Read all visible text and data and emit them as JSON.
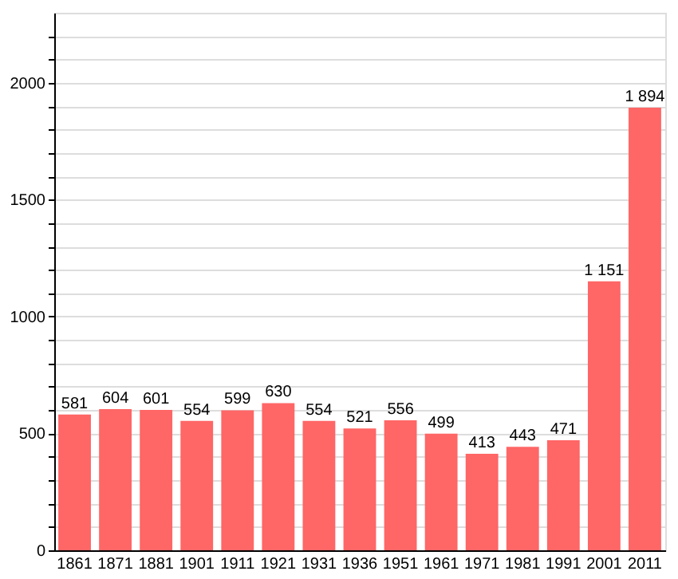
{
  "chart_data": {
    "type": "bar",
    "categories": [
      "1861",
      "1871",
      "1881",
      "1901",
      "1911",
      "1921",
      "1931",
      "1936",
      "1951",
      "1961",
      "1971",
      "1981",
      "1991",
      "2001",
      "2011"
    ],
    "values": [
      581,
      604,
      601,
      554,
      599,
      630,
      554,
      521,
      556,
      499,
      413,
      443,
      471,
      1151,
      1894
    ],
    "value_labels": [
      "581",
      "604",
      "601",
      "554",
      "599",
      "630",
      "554",
      "521",
      "556",
      "499",
      "413",
      "443",
      "471",
      "1 151",
      "1 894"
    ],
    "color": "#ff6666",
    "ylim": [
      0,
      2300
    ],
    "yticks": [
      0,
      {
        "value": 100,
        "label": null
      },
      {
        "value": 200,
        "label": null
      },
      {
        "value": 300,
        "label": null
      },
      {
        "value": 400,
        "label": null
      },
      500,
      {
        "value": 600,
        "label": null
      },
      {
        "value": 700,
        "label": null
      },
      {
        "value": 800,
        "label": null
      },
      {
        "value": 900,
        "label": null
      },
      1000,
      {
        "value": 1100,
        "label": null
      },
      {
        "value": 1200,
        "label": null
      },
      {
        "value": 1300,
        "label": null
      },
      {
        "value": 1400,
        "label": null
      },
      1500,
      {
        "value": 1600,
        "label": null
      },
      {
        "value": 1700,
        "label": null
      },
      {
        "value": 1800,
        "label": null
      },
      {
        "value": 1900,
        "label": null
      },
      2000,
      {
        "value": 2100,
        "label": null
      },
      {
        "value": 2200,
        "label": null
      }
    ],
    "grid": "y"
  }
}
